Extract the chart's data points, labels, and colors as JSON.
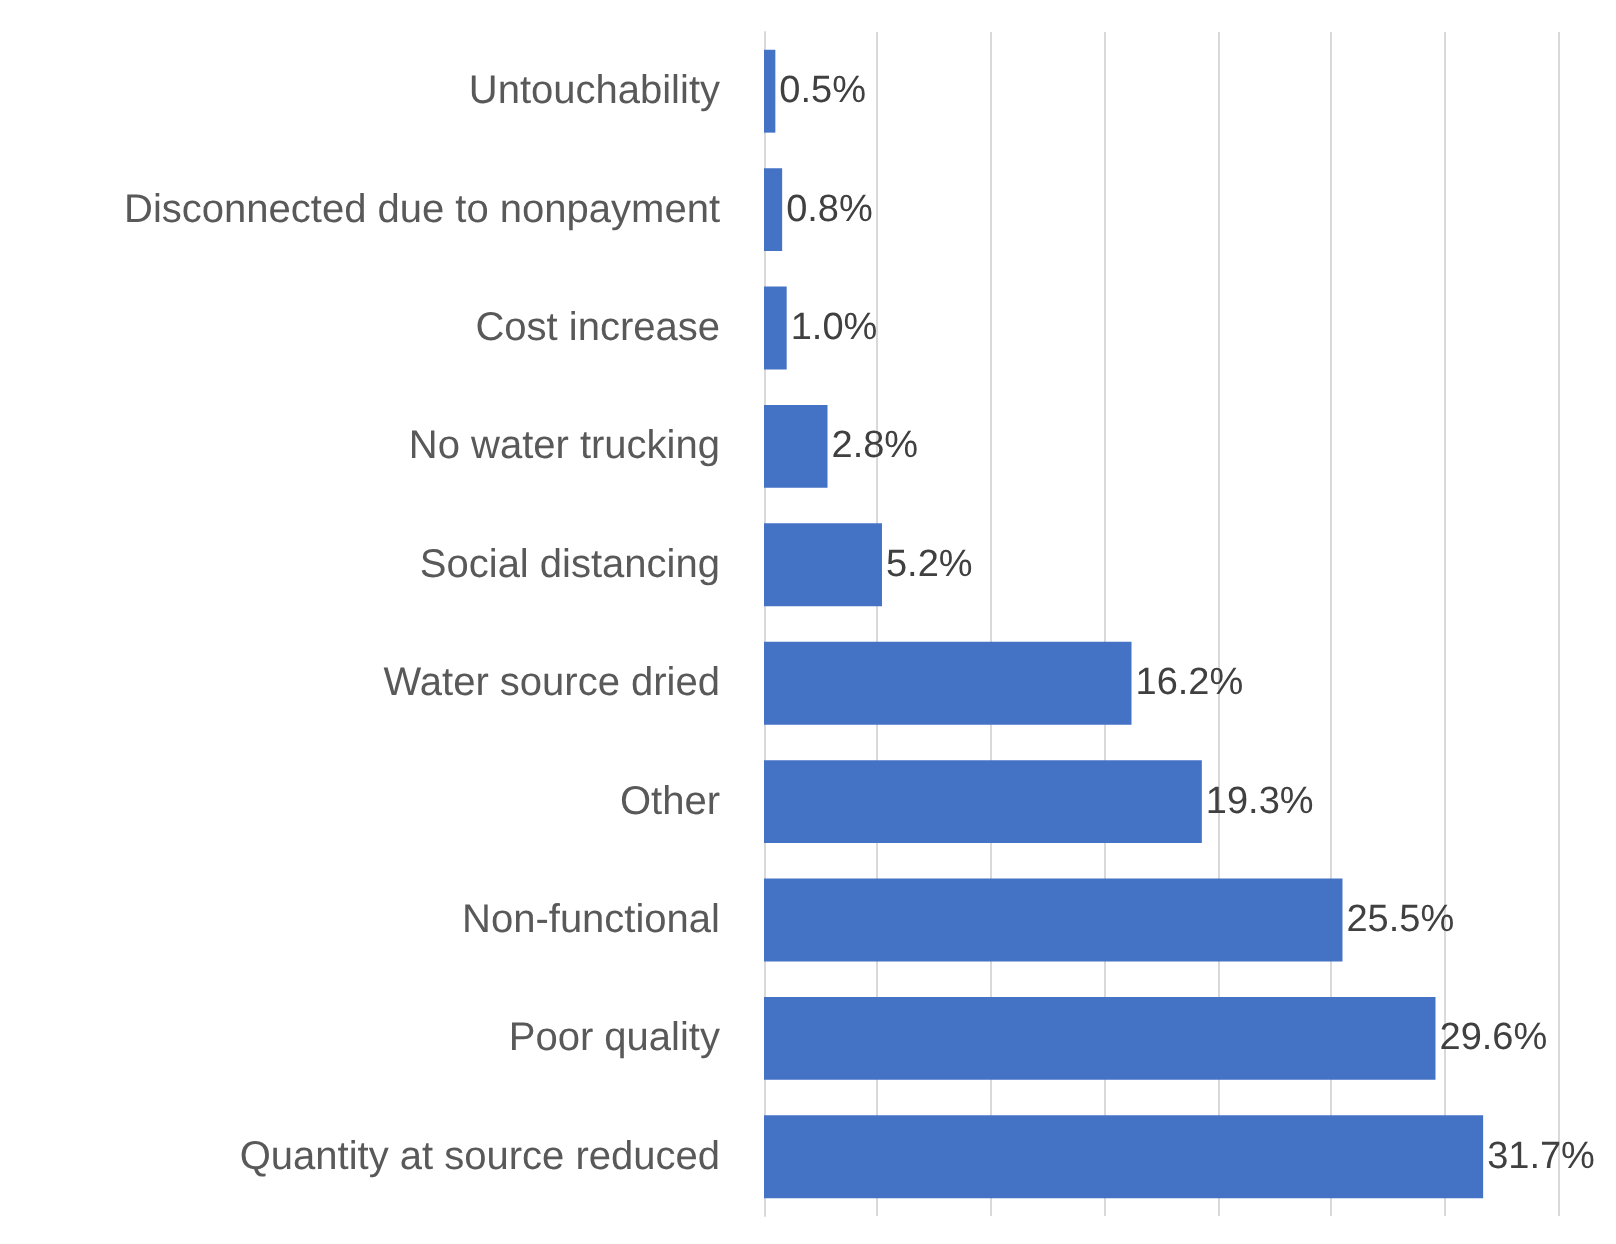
{
  "chart_data": {
    "type": "bar",
    "orientation": "horizontal",
    "categories": [
      "Untouchability",
      "Disconnected due to nonpayment",
      "Cost increase",
      "No water trucking",
      "Social distancing",
      "Water source dried",
      "Other",
      "Non-functional",
      "Poor quality",
      "Quantity at source reduced"
    ],
    "values": [
      0.5,
      0.8,
      1.0,
      2.8,
      5.2,
      16.2,
      19.3,
      25.5,
      29.6,
      31.7
    ],
    "value_labels": [
      "0.5%",
      "0.8%",
      "1.0%",
      "2.8%",
      "5.2%",
      "16.2%",
      "19.3%",
      "25.5%",
      "29.6%",
      "31.7%"
    ],
    "color": "#4472c4",
    "xlim": [
      0,
      35
    ],
    "xticks": [
      {
        "value": 0,
        "label": null
      },
      {
        "value": 5,
        "label": null
      },
      {
        "value": 10,
        "label": null
      },
      {
        "value": 15,
        "label": null
      },
      {
        "value": 20,
        "label": null
      },
      {
        "value": 25,
        "label": null
      },
      {
        "value": 30,
        "label": null
      },
      {
        "value": 35,
        "label": null
      }
    ],
    "grid": "x",
    "tick_labels": "y"
  }
}
